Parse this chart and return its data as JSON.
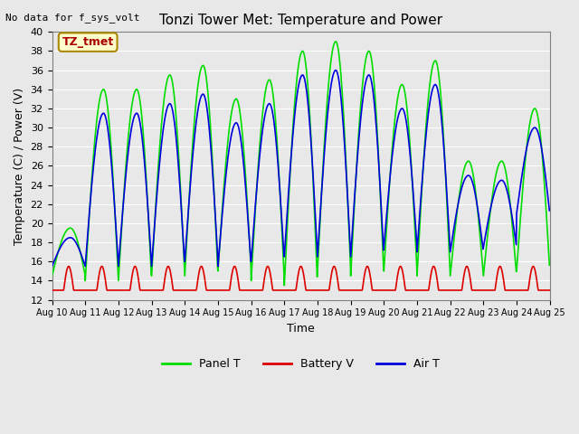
{
  "title": "Tonzi Tower Met: Temperature and Power",
  "no_data_text": "No data for f_sys_volt",
  "ylabel": "Temperature (C) / Power (V)",
  "xlabel": "Time",
  "ylim": [
    12,
    40
  ],
  "yticks": [
    12,
    14,
    16,
    18,
    20,
    22,
    24,
    26,
    28,
    30,
    32,
    34,
    36,
    38,
    40
  ],
  "xtick_labels": [
    "Aug 10",
    "Aug 11",
    "Aug 12",
    "Aug 13",
    "Aug 14",
    "Aug 15",
    "Aug 16",
    "Aug 17",
    "Aug 18",
    "Aug 19",
    "Aug 20",
    "Aug 21",
    "Aug 22",
    "Aug 23",
    "Aug 24",
    "Aug 25"
  ],
  "legend_labels": [
    "Panel T",
    "Battery V",
    "Air T"
  ],
  "legend_colors": [
    "#00dd00",
    "#dd0000",
    "#0000dd"
  ],
  "panel_color": "#00dd00",
  "battery_color": "#dd0000",
  "air_color": "#0000dd",
  "bg_color": "#e8e8e8",
  "plot_bg_color": "#e8e8e8",
  "annotation_text": "TZ_tmet",
  "annotation_color": "#aa0000",
  "annotation_bg": "#ffffcc",
  "num_days": 15,
  "panel_day_peaks": [
    19.5,
    34.0,
    34.0,
    35.5,
    36.5,
    33.0,
    35.0,
    38.0,
    39.0,
    38.0,
    34.5,
    37.0,
    26.5,
    26.5,
    32.0
  ],
  "panel_day_mins": [
    14.5,
    14.0,
    14.0,
    14.5,
    14.5,
    15.0,
    14.0,
    13.5,
    15.0,
    14.5,
    15.0,
    14.5,
    14.5,
    14.5,
    15.0
  ],
  "air_day_peaks": [
    18.5,
    31.5,
    31.5,
    32.5,
    33.5,
    30.5,
    32.5,
    35.5,
    36.0,
    35.5,
    32.0,
    34.5,
    25.0,
    24.5,
    30.0
  ],
  "air_day_mins": [
    15.5,
    15.5,
    15.5,
    15.5,
    16.0,
    15.5,
    16.0,
    16.5,
    16.5,
    16.5,
    17.5,
    17.0,
    17.0,
    17.5,
    21.0
  ],
  "battery_base": 13.0,
  "battery_peak": 15.5
}
